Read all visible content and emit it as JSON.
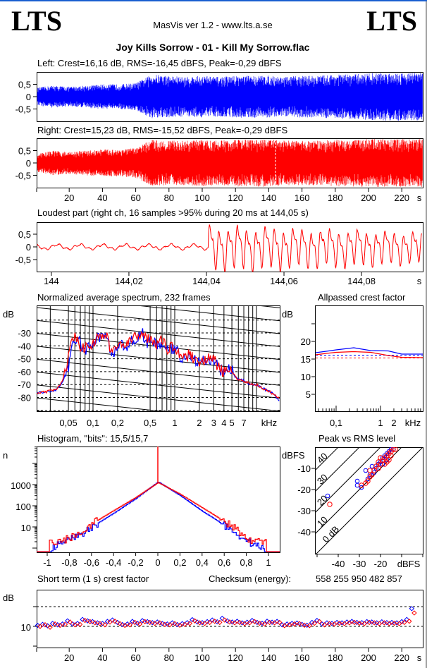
{
  "header": {
    "logo_left": "LTS",
    "logo_right": "LTS",
    "app_title": "MasVis ver 1.2 - www.lts.a.se",
    "file_title": "Joy Kills Sorrow - 01 - Kill My Sorrow.flac"
  },
  "colors": {
    "left": "#0000ff",
    "right": "#ff0000",
    "axis": "#000000",
    "background": "#ffffff"
  },
  "chart_data": [
    {
      "id": "left_waveform",
      "type": "area",
      "title": "Left: Crest=16,16 dB, RMS=-16,45 dBFS, Peak=-0,29 dBFS",
      "ylim": [
        -1,
        1
      ],
      "xlim": [
        0,
        232
      ],
      "ytick_labels": [
        "0,5",
        "0",
        "-0,5"
      ],
      "yticks": [
        0.5,
        0,
        -0.5
      ],
      "envelope_t_step": 10,
      "envelope": [
        0.35,
        0.45,
        0.4,
        0.45,
        0.5,
        0.5,
        0.55,
        0.9,
        0.85,
        0.8,
        0.85,
        0.8,
        0.85,
        0.85,
        0.85,
        0.8,
        0.85,
        0.85,
        0.9,
        0.9,
        0.95,
        0.97,
        0.97,
        0.97
      ]
    },
    {
      "id": "right_waveform",
      "type": "area",
      "title": "Right: Crest=15,23 dB, RMS=-15,52 dBFS, Peak=-0,29 dBFS",
      "ylim": [
        -1,
        1
      ],
      "xlim": [
        0,
        232
      ],
      "ytick_labels": [
        "0,5",
        "0",
        "-0,5"
      ],
      "yticks": [
        0.5,
        0,
        -0.5
      ],
      "marker_time": 144.05,
      "envelope_t_step": 10,
      "envelope": [
        0.35,
        0.5,
        0.45,
        0.5,
        0.55,
        0.55,
        0.6,
        0.95,
        0.9,
        0.9,
        0.95,
        0.9,
        0.95,
        0.95,
        0.97,
        0.9,
        0.9,
        0.9,
        0.95,
        0.95,
        0.97,
        0.97,
        0.97,
        0.97
      ],
      "xticks": [
        20,
        40,
        60,
        80,
        100,
        120,
        140,
        160,
        180,
        200,
        220
      ],
      "xtick_labels": [
        "20",
        "40",
        "60",
        "80",
        "100",
        "120",
        "140",
        "160",
        "180",
        "200",
        "220"
      ],
      "xunit": "s"
    },
    {
      "id": "loudest_part",
      "type": "line",
      "title": "Loudest part (right ch, 16 samples >95% during 20 ms at 144,05 s)",
      "xlim": [
        143.9962,
        144.0958
      ],
      "ylim": [
        -1,
        1
      ],
      "yticks": [
        0.5,
        0,
        -0.5
      ],
      "ytick_labels": [
        "0,5",
        "0",
        "-0,5"
      ],
      "xticks": [
        144,
        144.02,
        144.04,
        144.06,
        144.08
      ],
      "xtick_labels": [
        "144",
        "144,02",
        "144,04",
        "144,06",
        "144,08"
      ],
      "xunit": "s",
      "onset": 144.0405,
      "pre_amplitude": 0.12,
      "post_amplitude_start": 0.95,
      "post_amplitude_end": 0.65
    },
    {
      "id": "spectrum",
      "type": "line",
      "title": "Normalized average spectrum, 232 frames",
      "ylabel": "dB",
      "xunit": "kHz",
      "xscale": "log",
      "xlim": [
        0.0204,
        19
      ],
      "ylim": [
        -91,
        -8.6
      ],
      "yticks": [
        -30,
        -40,
        -50,
        -60,
        -70,
        -80
      ],
      "ytick_labels": [
        "-30",
        "-40",
        "-50",
        "-60",
        "-70",
        "-80"
      ],
      "xticks": [
        0.05,
        0.1,
        0.2,
        0.5,
        1,
        2,
        3,
        4,
        5,
        7
      ],
      "xtick_labels": [
        "0,05",
        "0,1",
        "0,2",
        "0,5",
        "1",
        "2",
        "3",
        "4",
        "5",
        "7"
      ],
      "freq": [
        0.02,
        0.025,
        0.03,
        0.035,
        0.04,
        0.045,
        0.05,
        0.055,
        0.06,
        0.065,
        0.07,
        0.08,
        0.09,
        0.1,
        0.12,
        0.14,
        0.16,
        0.18,
        0.2,
        0.25,
        0.3,
        0.35,
        0.4,
        0.45,
        0.5,
        0.6,
        0.7,
        0.8,
        1,
        1.2,
        1.5,
        2,
        2.5,
        3,
        3.5,
        4,
        5,
        5.5,
        6,
        7,
        8,
        10,
        12,
        15,
        19
      ],
      "series": [
        {
          "name": "Left",
          "values": [
            -77,
            -76,
            -75,
            -74,
            -71,
            -65,
            -58,
            -40,
            -35,
            -32,
            -40,
            -44,
            -41,
            -38,
            -33,
            -31,
            -42,
            -46,
            -39,
            -41,
            -36,
            -34,
            -30,
            -38,
            -35,
            -40,
            -38,
            -44,
            -42,
            -49,
            -48,
            -53,
            -51,
            -51,
            -58,
            -60,
            -58,
            -64,
            -66,
            -67,
            -69,
            -70,
            -73,
            -76,
            -82
          ]
        },
        {
          "name": "Right",
          "values": [
            -77,
            -76,
            -75,
            -74,
            -70,
            -62,
            -48,
            -38,
            -34,
            -32,
            -40,
            -42,
            -40,
            -38,
            -33,
            -30,
            -40,
            -45,
            -38,
            -40,
            -35,
            -33,
            -28,
            -36,
            -33,
            -38,
            -36,
            -42,
            -40,
            -48,
            -47,
            -52,
            -50,
            -50,
            -58,
            -60,
            -60,
            -64,
            -66,
            -67,
            -69,
            -70,
            -73,
            -76,
            -81
          ]
        }
      ]
    },
    {
      "id": "allpassed_crest",
      "type": "line",
      "title": "Allpassed crest factor",
      "ylabel": "dB",
      "xunit": "kHz",
      "xscale": "log",
      "xlim": [
        0.033,
        9
      ],
      "ylim": [
        0,
        30
      ],
      "yticks": [
        20,
        15,
        10,
        5
      ],
      "ytick_labels": [
        "20",
        "15",
        "10",
        "5"
      ],
      "xticks": [
        0.1,
        1,
        2
      ],
      "xtick_labels": [
        "0,1",
        "1",
        "2"
      ],
      "freq": [
        0.033,
        0.06,
        0.1,
        0.25,
        0.6,
        1.5,
        3,
        9
      ],
      "series": [
        {
          "name": "Left",
          "values": [
            16.8,
            17.2,
            17.6,
            18.2,
            17.4,
            17.3,
            16.4,
            16.4
          ],
          "reference": 16.1
        },
        {
          "name": "Right",
          "values": [
            16.2,
            16.6,
            16.9,
            17.1,
            16.9,
            16.0,
            15.5,
            15.4
          ],
          "reference": 15.3
        }
      ]
    },
    {
      "id": "histogram",
      "type": "line",
      "title": "Histogram, \"bits\": 15,5/15,7",
      "ylabel": "n",
      "yscale": "log",
      "xlim": [
        -1.1,
        1.1
      ],
      "ylim": [
        0.63,
        63000
      ],
      "yticks": [
        1000,
        100,
        10
      ],
      "ytick_labels": [
        "1000",
        "100",
        "10"
      ],
      "xticks": [
        -1,
        -0.8,
        -0.6,
        -0.4,
        -0.2,
        0,
        0.2,
        0.4,
        0.6,
        0.8,
        1
      ],
      "xtick_labels": [
        "-1",
        "-0,8",
        "-0,6",
        "-0,4",
        "-0,2",
        "0",
        "0,2",
        "0,4",
        "0,6",
        "0,8",
        "1"
      ],
      "series": [
        {
          "name": "Left",
          "points": [
            [
              -0.96,
              1
            ],
            [
              -0.85,
              2
            ],
            [
              -0.7,
              4
            ],
            [
              -0.6,
              10
            ],
            [
              -0.4,
              45
            ],
            [
              -0.2,
              220
            ],
            [
              0,
              1350
            ],
            [
              0.2,
              300
            ],
            [
              0.4,
              55
            ],
            [
              0.6,
              12
            ],
            [
              0.7,
              5
            ],
            [
              0.8,
              2.2
            ],
            [
              0.86,
              1.5
            ],
            [
              0.96,
              1
            ]
          ]
        },
        {
          "name": "Right",
          "points": [
            [
              -0.98,
              2
            ],
            [
              -0.9,
              2
            ],
            [
              -0.8,
              3
            ],
            [
              -0.7,
              6
            ],
            [
              -0.6,
              14
            ],
            [
              -0.4,
              60
            ],
            [
              -0.2,
              250
            ],
            [
              0,
              1250
            ],
            [
              0.2,
              350
            ],
            [
              0.4,
              80
            ],
            [
              0.6,
              18
            ],
            [
              0.7,
              8
            ],
            [
              0.8,
              3
            ],
            [
              0.88,
              2
            ],
            [
              0.98,
              2
            ]
          ],
          "zero_spike": 63000
        }
      ]
    },
    {
      "id": "peak_vs_rms",
      "type": "scatter",
      "title": "Peak vs RMS level",
      "xlabel": "dBFS",
      "ylabel": "dBFS",
      "xlim": [
        -51,
        0
      ],
      "ylim": [
        -50,
        0
      ],
      "yticks": [
        -10,
        -20,
        -30,
        -40
      ],
      "ytick_labels": [
        "-10",
        "-20",
        "-30",
        "-40"
      ],
      "xticks": [
        -40,
        -30,
        -20
      ],
      "xtick_labels": [
        "-40",
        "-30",
        "-20"
      ],
      "crest_lines": [
        0,
        10,
        20,
        30,
        40
      ],
      "crest_labels": [
        "0 dB",
        "10",
        "20",
        "30",
        "40"
      ],
      "series": [
        {
          "name": "Left",
          "points": [
            [
              -45,
              -23
            ],
            [
              -31,
              -16
            ],
            [
              -31,
              -18
            ],
            [
              -29,
              -19
            ],
            [
              -27,
              -11
            ],
            [
              -26,
              -15
            ],
            [
              -25,
              -13
            ],
            [
              -24,
              -9
            ],
            [
              -23,
              -12
            ],
            [
              -22,
              -10
            ],
            [
              -21,
              -8
            ],
            [
              -20,
              -7
            ],
            [
              -19,
              -5
            ],
            [
              -18,
              -4
            ],
            [
              -17,
              -3
            ],
            [
              -16,
              -2
            ],
            [
              -15,
              -1
            ],
            [
              -19,
              -8
            ],
            [
              -17,
              -6
            ],
            [
              -14,
              -1
            ]
          ]
        },
        {
          "name": "Right",
          "points": [
            [
              -44,
              -27
            ],
            [
              -29,
              -18
            ],
            [
              -27,
              -17
            ],
            [
              -26,
              -16
            ],
            [
              -25,
              -14
            ],
            [
              -25,
              -11
            ],
            [
              -24,
              -13
            ],
            [
              -23,
              -11
            ],
            [
              -22,
              -9
            ],
            [
              -21,
              -7
            ],
            [
              -21,
              -10
            ],
            [
              -20,
              -8
            ],
            [
              -19,
              -6
            ],
            [
              -18,
              -5
            ],
            [
              -18,
              -8
            ],
            [
              -17,
              -4
            ],
            [
              -16,
              -3
            ],
            [
              -16,
              -6
            ],
            [
              -15,
              -2
            ],
            [
              -14,
              -1
            ],
            [
              -13,
              -1
            ],
            [
              -15,
              -4
            ],
            [
              -17,
              -7
            ],
            [
              -20,
              -5
            ]
          ]
        }
      ]
    },
    {
      "id": "short_term_crest",
      "type": "scatter",
      "title": "Short term (1 s) crest factor",
      "ylabel": "dB",
      "checksum_label": "Checksum (energy):",
      "checksum_value": "558 255 950 482 857",
      "xlim": [
        0,
        232
      ],
      "ylim": [
        0,
        29
      ],
      "yticks": [
        10
      ],
      "ytick_labels": [
        "10"
      ],
      "reference_lines": [
        10,
        20
      ],
      "xticks": [
        20,
        40,
        60,
        80,
        100,
        120,
        140,
        160,
        180,
        200,
        220
      ],
      "xtick_labels": [
        "20",
        "40",
        "60",
        "80",
        "100",
        "120",
        "140",
        "160",
        "180",
        "200",
        "220"
      ],
      "xunit": "s",
      "t_start": 1,
      "t_step": 3,
      "series": [
        {
          "name": "Left",
          "values": [
            10.5,
            11,
            10.3,
            11.5,
            10.8,
            11.2,
            12.8,
            11.2,
            11.5,
            13.5,
            12.8,
            12.4,
            11.8,
            11.5,
            12.5,
            13.2,
            12.0,
            10.9,
            11.2,
            12.5,
            11.6,
            12.9,
            12.4,
            11.9,
            12.2,
            11.5,
            11.2,
            11.8,
            10.9,
            11.4,
            11.9,
            13.4,
            12.2,
            11.9,
            12.4,
            13.2,
            12.3,
            14.1,
            12.8,
            12.2,
            12.6,
            11.8,
            12.1,
            13.0,
            12.0,
            11.6,
            12.6,
            12.1,
            12.5,
            10.8,
            11.2,
            11.5,
            11.7,
            11.0,
            10.6,
            12.0,
            13.0,
            11.2,
            11.8,
            11.5,
            12.0,
            11.8,
            12.2,
            12.5,
            12.0,
            11.9,
            12.4,
            12.2,
            11.8,
            12.3,
            11.9,
            12.0,
            11.8,
            12.4,
            13.5,
            19.0
          ]
        },
        {
          "name": "Right",
          "values": [
            10.0,
            10.8,
            9.6,
            11.2,
            10.5,
            11.0,
            12.2,
            10.8,
            11.0,
            13.0,
            12.4,
            11.8,
            11.4,
            10.8,
            12.2,
            12.6,
            11.4,
            10.5,
            10.8,
            12.0,
            11.2,
            12.4,
            12.0,
            11.5,
            11.8,
            11.0,
            10.8,
            11.4,
            10.6,
            11.0,
            11.5,
            12.8,
            11.8,
            11.5,
            12.0,
            12.6,
            12.0,
            13.2,
            12.2,
            11.8,
            12.0,
            11.4,
            11.8,
            12.4,
            11.6,
            11.2,
            12.0,
            11.8,
            12.0,
            10.4,
            10.8,
            11.2,
            11.4,
            10.6,
            10.4,
            11.6,
            12.4,
            10.8,
            11.4,
            11.2,
            11.6,
            11.4,
            11.8,
            12.0,
            11.6,
            11.4,
            12.0,
            11.8,
            11.4,
            11.8,
            11.4,
            11.6,
            11.4,
            12.0,
            12.6,
            16.8
          ]
        }
      ]
    }
  ]
}
